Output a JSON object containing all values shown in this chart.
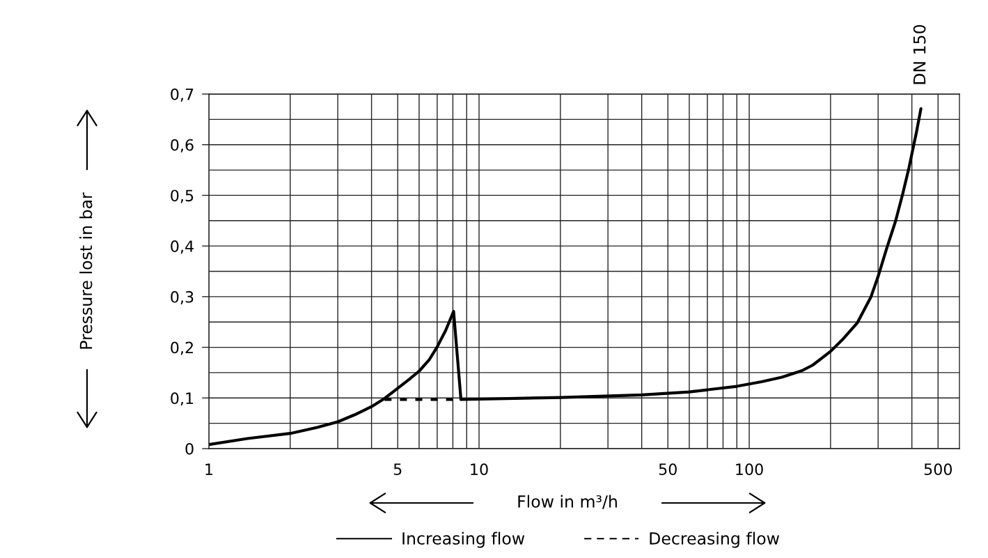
{
  "chart_data": {
    "type": "line",
    "xlabel": "Flow in m³/h",
    "ylabel": "Pressure lost in bar",
    "log": "x",
    "xlim": [
      1,
      600
    ],
    "ylim": [
      0,
      0.7
    ],
    "xticks": [
      1,
      {
        "value": 2,
        "label": null
      },
      {
        "value": 3,
        "label": null
      },
      {
        "value": 4,
        "label": null
      },
      5,
      {
        "value": 6,
        "label": null
      },
      {
        "value": 7,
        "label": null
      },
      {
        "value": 8,
        "label": null
      },
      {
        "value": 9,
        "label": null
      },
      10,
      {
        "value": 20,
        "label": null
      },
      {
        "value": 30,
        "label": null
      },
      {
        "value": 40,
        "label": null
      },
      50,
      {
        "value": 60,
        "label": null
      },
      {
        "value": 70,
        "label": null
      },
      {
        "value": 80,
        "label": null
      },
      {
        "value": 90,
        "label": null
      },
      100,
      {
        "value": 200,
        "label": null
      },
      {
        "value": 300,
        "label": null
      },
      {
        "value": 400,
        "label": null
      },
      500
    ],
    "yticks": [
      0,
      {
        "value": 0.05,
        "label": null
      },
      {
        "value": 0.1,
        "label": "0,1"
      },
      {
        "value": 0.15,
        "label": null
      },
      {
        "value": 0.2,
        "label": "0,2"
      },
      {
        "value": 0.25,
        "label": null
      },
      {
        "value": 0.3,
        "label": "0,3"
      },
      {
        "value": 0.35,
        "label": null
      },
      {
        "value": 0.4,
        "label": "0,4"
      },
      {
        "value": 0.45,
        "label": null
      },
      {
        "value": 0.5,
        "label": "0,5"
      },
      {
        "value": 0.55,
        "label": null
      },
      {
        "value": 0.6,
        "label": "0,6"
      },
      {
        "value": 0.65,
        "label": null
      },
      {
        "value": 0.7,
        "label": "0,7"
      }
    ],
    "grid": true,
    "legend": "bottom",
    "series": [
      {
        "name": "Increasing flow",
        "color": "#000000",
        "line_style": "solid",
        "x": [
          1,
          1.39,
          2,
          2.52,
          3,
          3.47,
          4,
          4.47,
          5,
          5.52,
          6,
          6.55,
          7,
          7.52,
          8.05,
          8.57,
          20,
          40,
          60,
          90,
          111,
          132,
          157,
          172,
          200,
          223,
          251,
          282,
          300,
          323,
          348,
          370,
          390,
          400,
          416,
          432
        ],
        "values": [
          0.008,
          0.02,
          0.03,
          0.042,
          0.053,
          0.067,
          0.083,
          0.099,
          0.119,
          0.137,
          0.153,
          0.176,
          0.201,
          0.233,
          0.271,
          0.097,
          0.101,
          0.106,
          0.112,
          0.123,
          0.132,
          0.141,
          0.154,
          0.165,
          0.192,
          0.217,
          0.248,
          0.299,
          0.34,
          0.396,
          0.449,
          0.503,
          0.554,
          0.582,
          0.625,
          0.671
        ]
      },
      {
        "name": "Decreasing flow",
        "color": "#000000",
        "line_style": "dashed",
        "x": [
          4.47,
          8.0
        ],
        "values": [
          0.097,
          0.097
        ]
      }
    ],
    "annotations": [
      {
        "text": "DN 150",
        "x": 432,
        "y": 0.671
      }
    ]
  }
}
